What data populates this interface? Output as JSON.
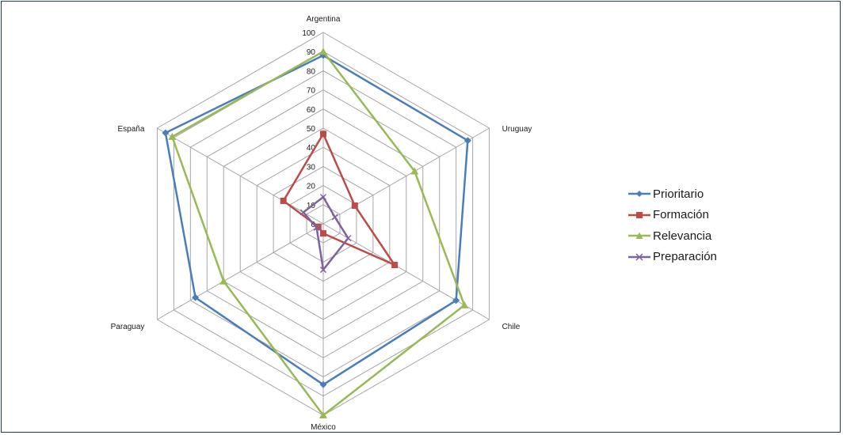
{
  "chart_data": {
    "type": "radar",
    "categories": [
      "Argentina",
      "Uruguay",
      "Chile",
      "México",
      "Paraguay",
      "España"
    ],
    "rlim": [
      0,
      100
    ],
    "ticks": [
      "0",
      "10",
      "20",
      "30",
      "40",
      "50",
      "60",
      "70",
      "80",
      "90",
      "100"
    ],
    "legend_position": "right",
    "grid": true,
    "series": [
      {
        "name": "Prioritario",
        "color": "#4a7ebb",
        "marker": "diamond",
        "values": [
          88,
          87,
          80,
          84,
          77,
          95
        ]
      },
      {
        "name": "Formación",
        "color": "#be4b48",
        "marker": "square",
        "values": [
          47,
          19,
          43,
          5,
          3,
          24
        ]
      },
      {
        "name": "Relevancia",
        "color": "#98b954",
        "marker": "triangle",
        "values": [
          90,
          55,
          85,
          100,
          60,
          91
        ]
      },
      {
        "name": "Preparación",
        "color": "#7e63a1",
        "marker": "x",
        "values": [
          14,
          7,
          15,
          24,
          4,
          12
        ]
      }
    ]
  }
}
